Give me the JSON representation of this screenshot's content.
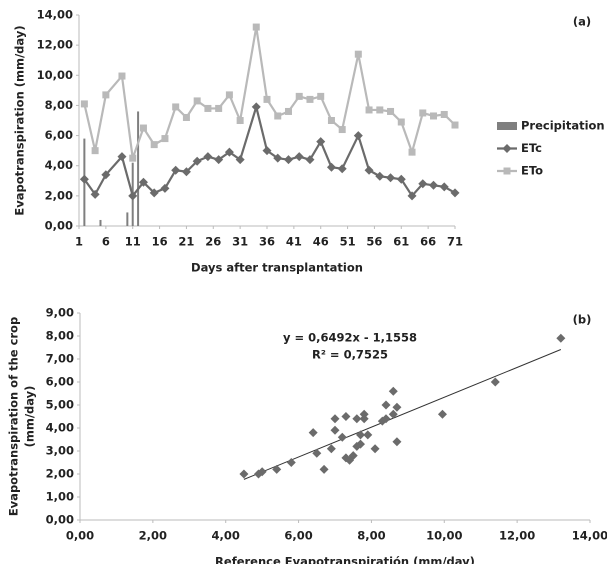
{
  "chart_data": [
    {
      "type": "line",
      "panel_label": "(a)",
      "ylabel": "Evapotranspiration (mm/day)",
      "xlabel": "Days after transplantation",
      "xlim": [
        1,
        71
      ],
      "xticks": [
        1,
        6,
        11,
        16,
        21,
        26,
        31,
        36,
        41,
        46,
        51,
        56,
        61,
        66,
        71
      ],
      "ylim": [
        0,
        14
      ],
      "yticks": [
        {
          "value": 0,
          "label": "0,00"
        },
        {
          "value": 2,
          "label": "2,00"
        },
        {
          "value": 4,
          "label": "4,00"
        },
        {
          "value": 6,
          "label": "6,00"
        },
        {
          "value": 8,
          "label": "8,00"
        },
        {
          "value": 10,
          "label": "10,00"
        },
        {
          "value": 12,
          "label": "12,00"
        },
        {
          "value": 14,
          "label": "14,00"
        }
      ],
      "legend": "right",
      "x": [
        2,
        4,
        6,
        9,
        11,
        13,
        15,
        17,
        19,
        21,
        23,
        25,
        27,
        29,
        31,
        34,
        36,
        38,
        40,
        42,
        44,
        46,
        48,
        50,
        53,
        55,
        57,
        59,
        61,
        63,
        65,
        67,
        69,
        71
      ],
      "series": [
        {
          "name": "Precipitation",
          "type": "bar",
          "color": "#7f7f7f",
          "x": [
            2,
            5,
            10,
            11,
            12
          ],
          "values": [
            5.8,
            0.4,
            0.9,
            4.2,
            7.6
          ]
        },
        {
          "name": "ETc",
          "marker": "diamond",
          "color": "#6b6b6b",
          "values": [
            3.1,
            2.1,
            3.4,
            4.6,
            2.0,
            2.9,
            2.2,
            2.5,
            3.7,
            3.6,
            4.3,
            4.6,
            4.4,
            4.9,
            4.4,
            7.9,
            5.0,
            4.5,
            4.4,
            4.6,
            4.4,
            5.6,
            3.9,
            3.8,
            6.0,
            3.7,
            3.3,
            3.2,
            3.1,
            2.0,
            2.8,
            2.7,
            2.6,
            2.2
          ]
        },
        {
          "name": "ETo",
          "marker": "square",
          "color": "#b9b9b9",
          "values": [
            8.1,
            5.0,
            8.7,
            9.95,
            4.5,
            6.5,
            5.4,
            5.8,
            7.9,
            7.2,
            8.3,
            7.8,
            7.8,
            8.7,
            7.0,
            13.2,
            8.4,
            7.3,
            7.6,
            8.6,
            8.4,
            8.6,
            7.0,
            6.4,
            11.4,
            7.7,
            7.7,
            7.6,
            6.9,
            4.9,
            7.5,
            7.3,
            7.4,
            6.7
          ]
        }
      ]
    },
    {
      "type": "scatter",
      "panel_label": "(b)",
      "ylabel": [
        "Evapotranspiration of the crop",
        "(mm/day)"
      ],
      "xlabel": "Reference Evapotranspiratión (mm/day)",
      "xlim": [
        0,
        14
      ],
      "xticks": [
        {
          "value": 0,
          "label": "0,00"
        },
        {
          "value": 2,
          "label": "2,00"
        },
        {
          "value": 4,
          "label": "4,00"
        },
        {
          "value": 6,
          "label": "6,00"
        },
        {
          "value": 8,
          "label": "8,00"
        },
        {
          "value": 10,
          "label": "10,00"
        },
        {
          "value": 12,
          "label": "12,00"
        },
        {
          "value": 14,
          "label": "14,00"
        }
      ],
      "ylim": [
        0,
        9
      ],
      "yticks": [
        {
          "value": 0,
          "label": "0,00"
        },
        {
          "value": 1,
          "label": "1,00"
        },
        {
          "value": 2,
          "label": "2,00"
        },
        {
          "value": 3,
          "label": "3,00"
        },
        {
          "value": 4,
          "label": "4,00"
        },
        {
          "value": 5,
          "label": "5,00"
        },
        {
          "value": 6,
          "label": "6,00"
        },
        {
          "value": 7,
          "label": "7,00"
        },
        {
          "value": 8,
          "label": "8,00"
        },
        {
          "value": 9,
          "label": "9,00"
        }
      ],
      "color": "#6b6b6b",
      "x": [
        8.1,
        5.0,
        8.7,
        9.95,
        4.5,
        6.5,
        5.4,
        5.8,
        7.9,
        7.2,
        8.3,
        7.8,
        7.8,
        8.7,
        7.0,
        13.2,
        8.4,
        7.3,
        7.6,
        8.6,
        8.4,
        8.6,
        7.0,
        6.4,
        11.4,
        7.7,
        7.7,
        7.6,
        6.9,
        4.9,
        7.5,
        7.3,
        7.4,
        6.7
      ],
      "values": [
        3.1,
        2.1,
        3.4,
        4.6,
        2.0,
        2.9,
        2.2,
        2.5,
        3.7,
        3.6,
        4.3,
        4.6,
        4.4,
        4.9,
        4.4,
        7.9,
        5.0,
        4.5,
        4.4,
        4.6,
        4.4,
        5.6,
        3.9,
        3.8,
        6.0,
        3.7,
        3.3,
        3.2,
        3.1,
        2.0,
        2.8,
        2.7,
        2.6,
        2.2
      ],
      "trendline": {
        "slope": 0.6492,
        "intercept": -1.1558
      },
      "annotations": [
        "y = 0,6492x - 1,1558",
        "R² = 0,7525"
      ]
    }
  ]
}
